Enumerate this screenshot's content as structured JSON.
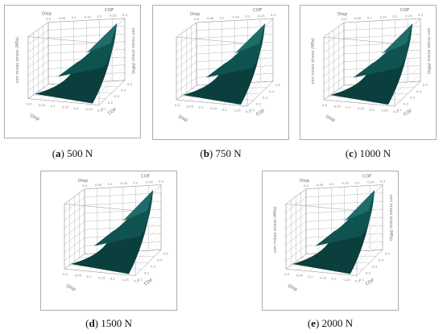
{
  "colors": {
    "surface_top": "#1f6c6a",
    "surface_mid": "#0f5351",
    "surface_low": "#0a3f3e",
    "grid": "#9a9a9a",
    "frame": "#999999"
  },
  "panels": [
    {
      "id": "a",
      "caption": {
        "letter": "a",
        "text": " 500 N"
      },
      "chart_data": {
        "type": "surface",
        "xlabel": "Disp",
        "ylabel": "COF",
        "zlabel": "von mises stress (MPa)",
        "x_ticks": [
          "0.0",
          "0.05",
          "0.1",
          "0.15",
          "0.2",
          "0.25",
          "0.3"
        ],
        "y_ticks": [
          "0.1",
          "0.2",
          "0.3",
          "0.4",
          "0.5"
        ],
        "surface_shape": "convex, rising with Disp and COF"
      }
    },
    {
      "id": "b",
      "caption": {
        "letter": "b",
        "text": " 750 N"
      },
      "chart_data": {
        "type": "surface",
        "xlabel": "Disp",
        "ylabel": "COF",
        "zlabel": "",
        "x_ticks": [
          "0.0",
          "0.05",
          "0.1",
          "0.15",
          "0.2",
          "0.25",
          "0.3"
        ],
        "y_ticks": [
          "0.1",
          "0.2",
          "0.3",
          "0.4",
          "0.5"
        ],
        "surface_shape": "convex, rising with Disp and COF"
      }
    },
    {
      "id": "c",
      "caption": {
        "letter": "c",
        "text": " 1000 N"
      },
      "chart_data": {
        "type": "surface",
        "xlabel": "Disp",
        "ylabel": "COF",
        "zlabel": "von mises stress (MPa)",
        "x_ticks": [
          "0.0",
          "0.05",
          "0.1",
          "0.15",
          "0.2",
          "0.25",
          "0.3"
        ],
        "y_ticks": [
          "0.1",
          "0.2",
          "0.3",
          "0.4",
          "0.5"
        ],
        "surface_shape": "convex, rising with Disp and COF"
      }
    },
    {
      "id": "d",
      "caption": {
        "letter": "d",
        "text": " 1500 N"
      },
      "chart_data": {
        "type": "surface",
        "xlabel": "Disp",
        "ylabel": "COF",
        "zlabel": "",
        "x_ticks": [
          "0.0",
          "0.05",
          "0.1",
          "0.15",
          "0.2",
          "0.25",
          "0.3"
        ],
        "y_ticks": [
          "0.1",
          "0.2",
          "0.3",
          "0.4",
          "0.5"
        ],
        "surface_shape": "convex, rising with Disp and COF"
      }
    },
    {
      "id": "e",
      "caption": {
        "letter": "e",
        "text": " 2000 N"
      },
      "chart_data": {
        "type": "surface",
        "xlabel": "Disp",
        "ylabel": "COF",
        "zlabel": "von mises stress (MPa)",
        "x_ticks": [
          "0.0",
          "0.05",
          "0.1",
          "0.15",
          "0.2",
          "0.25",
          "0.3"
        ],
        "y_ticks": [
          "0.1",
          "0.2",
          "0.3",
          "0.4",
          "0.5"
        ],
        "surface_shape": "convex, rising with Disp and COF"
      }
    }
  ]
}
